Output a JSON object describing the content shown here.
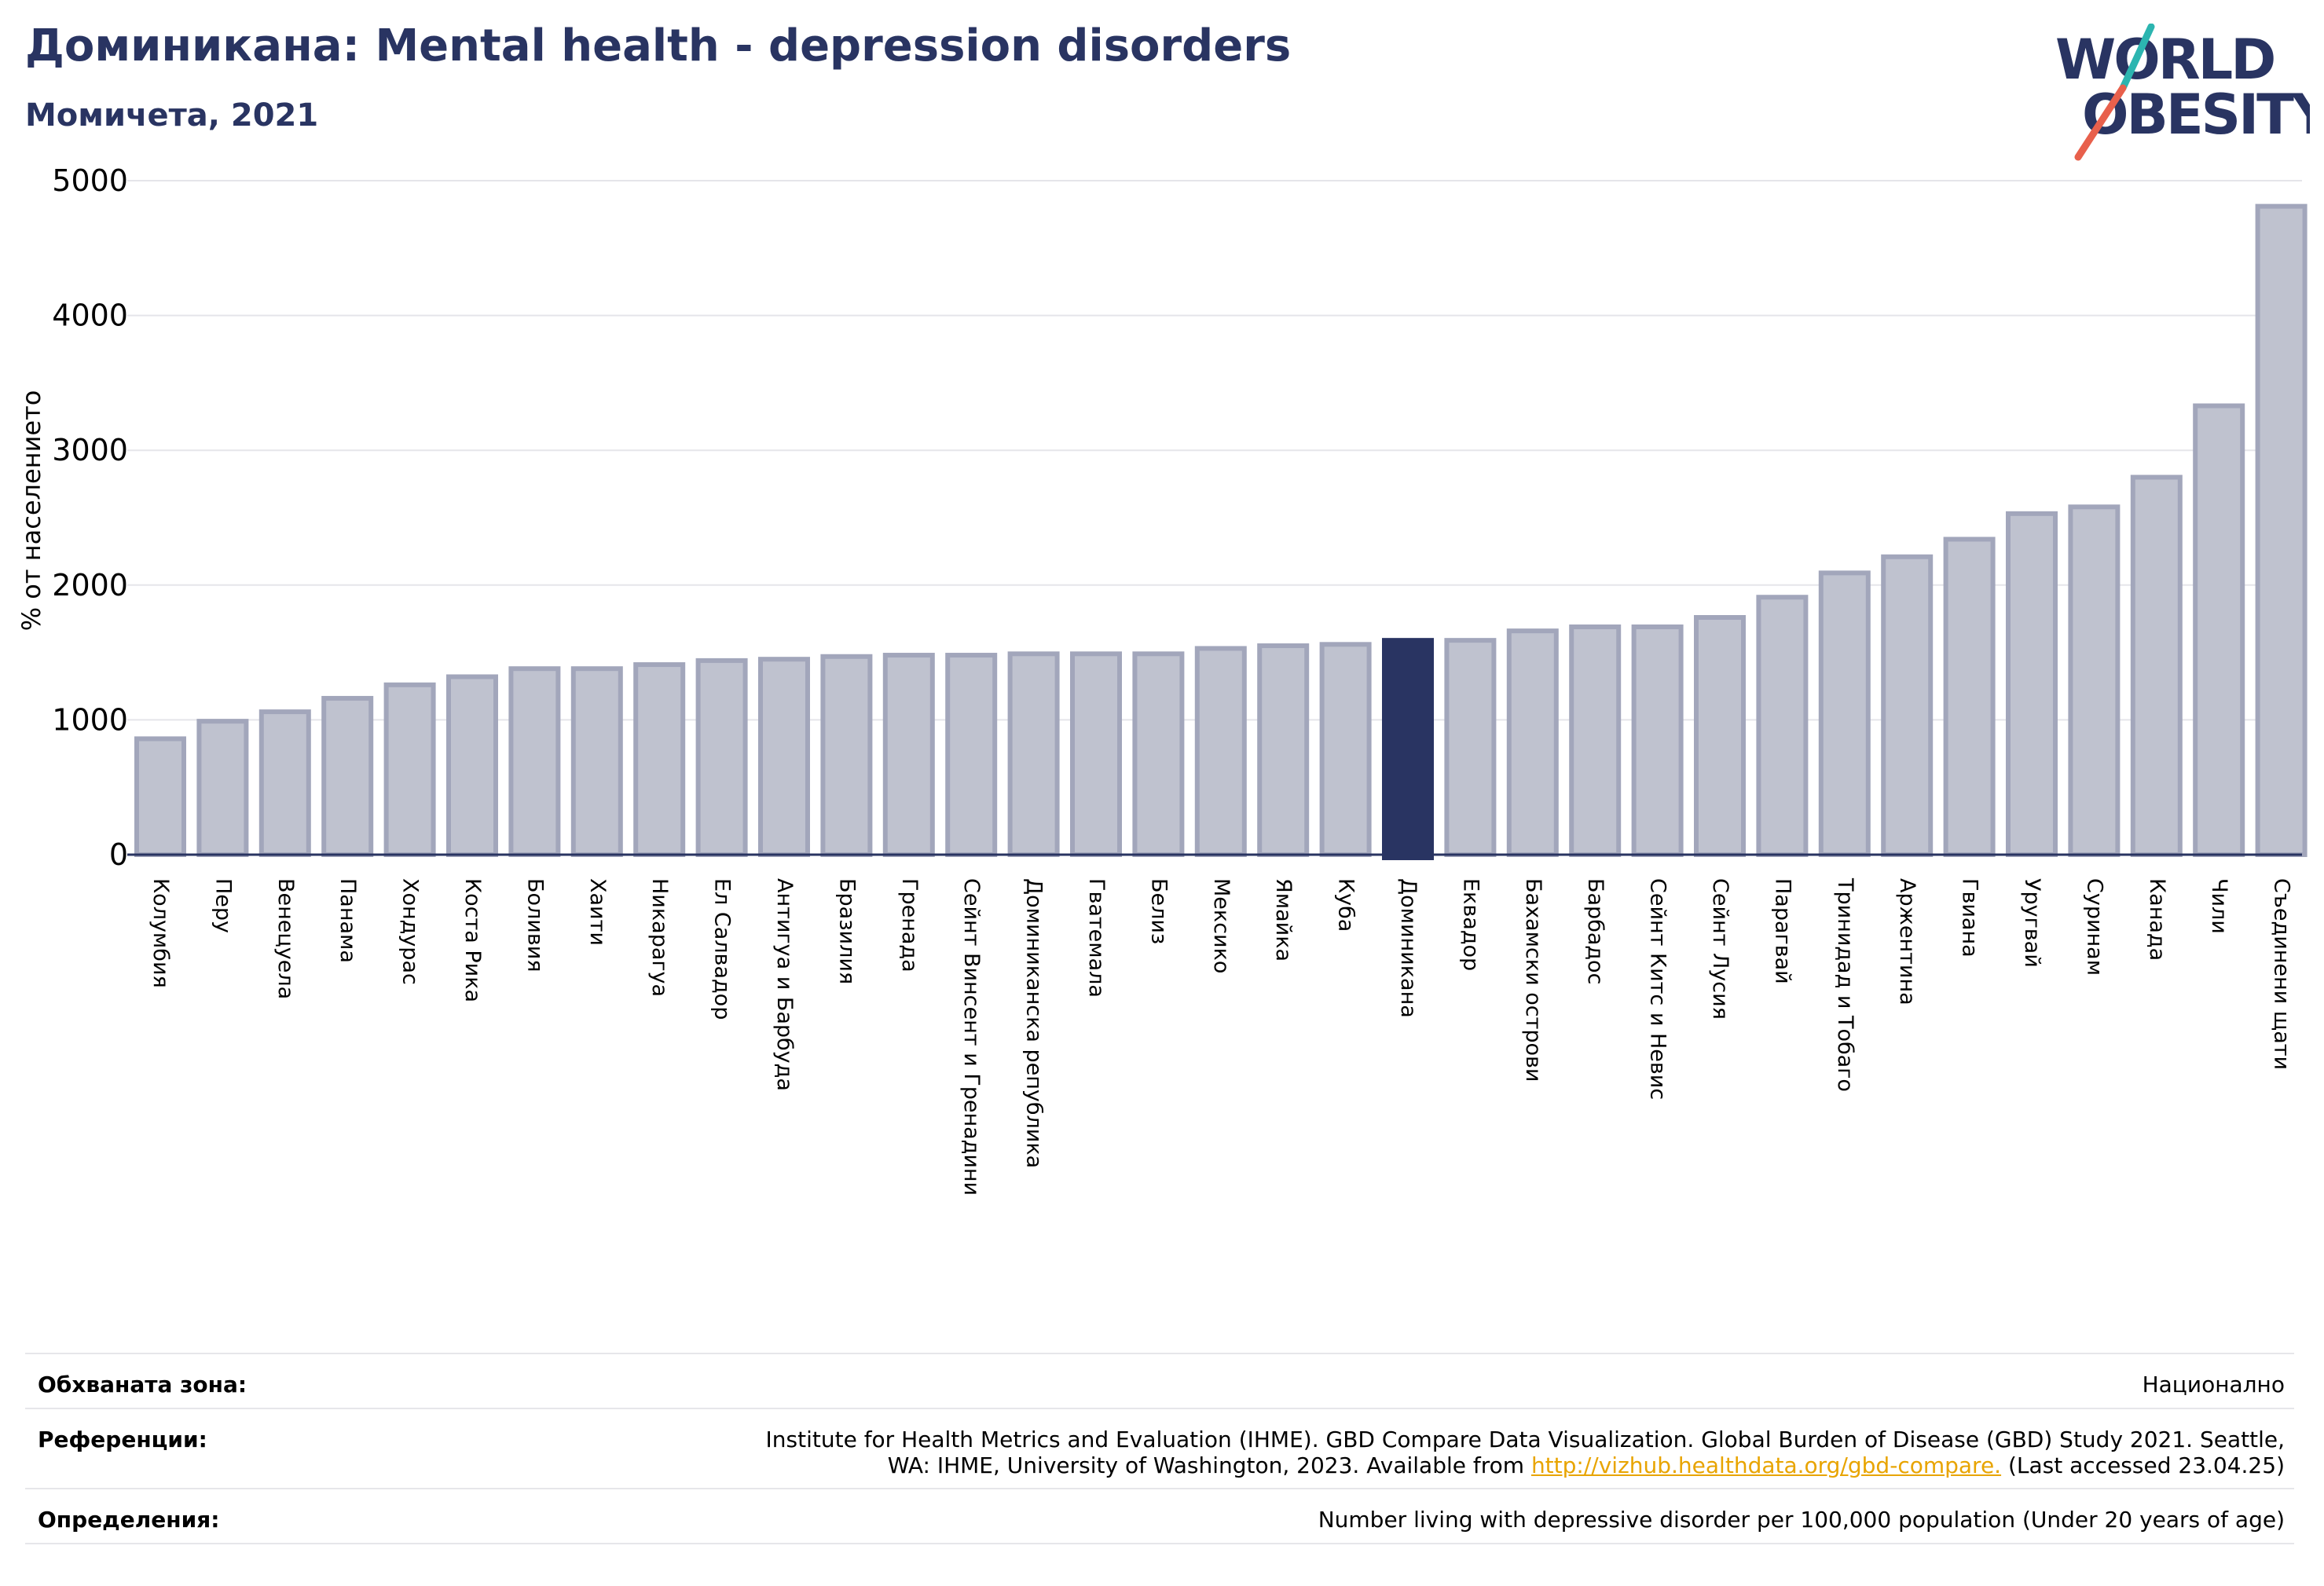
{
  "header": {
    "title": "Доминикана: Mental health - depression disorders",
    "subtitle": "Момичета, 2021"
  },
  "logo": {
    "line1": "WORLD",
    "line2": "OBESITY",
    "colors": {
      "text": "#293462",
      "slash_teal": "#2cb5b0",
      "slash_red": "#e8604c"
    }
  },
  "chart_data": {
    "type": "bar",
    "ylabel": "% от населението",
    "ylim": [
      0,
      5000
    ],
    "yticks": [
      0,
      1000,
      2000,
      3000,
      4000,
      5000
    ],
    "grid": true,
    "highlight": "Доминикана",
    "colors": {
      "bar": "#bfc2cf",
      "bar_border": "#a2a6bb",
      "highlight": "#293462",
      "axis": "#293462",
      "grid": "#e5e5ea"
    },
    "categories": [
      "Колумбия",
      "Перу",
      "Венецуела",
      "Панама",
      "Хондурас",
      "Коста Рика",
      "Боливия",
      "Хаити",
      "Никарагуа",
      "Ел Салвадор",
      "Антигуа и Барбуда",
      "Бразилия",
      "Гренада",
      "Сейнт Винсент и Гренадини",
      "Доминиканска република",
      "Гватемала",
      "Белиз",
      "Мексико",
      "Ямайка",
      "Куба",
      "Доминикана",
      "Еквадор",
      "Бахамски острови",
      "Барбадос",
      "Сейнт Китс и Невис",
      "Сейнт Лусия",
      "Парагвай",
      "Тринидад и Тобаго",
      "Аржентина",
      "Гвиана",
      "Уругвай",
      "Суринам",
      "Канада",
      "Чили",
      "Съединени щати"
    ],
    "values": [
      860,
      990,
      1060,
      1160,
      1260,
      1320,
      1380,
      1380,
      1410,
      1440,
      1450,
      1470,
      1480,
      1480,
      1490,
      1490,
      1490,
      1530,
      1550,
      1560,
      1590,
      1590,
      1660,
      1690,
      1690,
      1760,
      1910,
      2090,
      2210,
      2340,
      2530,
      2580,
      2800,
      3330,
      4810
    ]
  },
  "footer": {
    "coverage": {
      "label": "Обхваната зона:",
      "value": "Национално"
    },
    "references": {
      "label": "Референции:",
      "line1": "Institute for Health Metrics and Evaluation (IHME). GBD Compare Data Visualization. Global Burden of Disease (GBD) Study 2021. Seattle,",
      "line2_prefix": "WA: IHME, University of Washington, 2023. Available from ",
      "link": "http://vizhub.healthdata.org/gbd-compare.",
      "line2_suffix": " (Last accessed 23.04.25)"
    },
    "definitions": {
      "label": "Определения:",
      "value": "Number living with depressive disorder per 100,000 population (Under 20 years of age)"
    }
  }
}
